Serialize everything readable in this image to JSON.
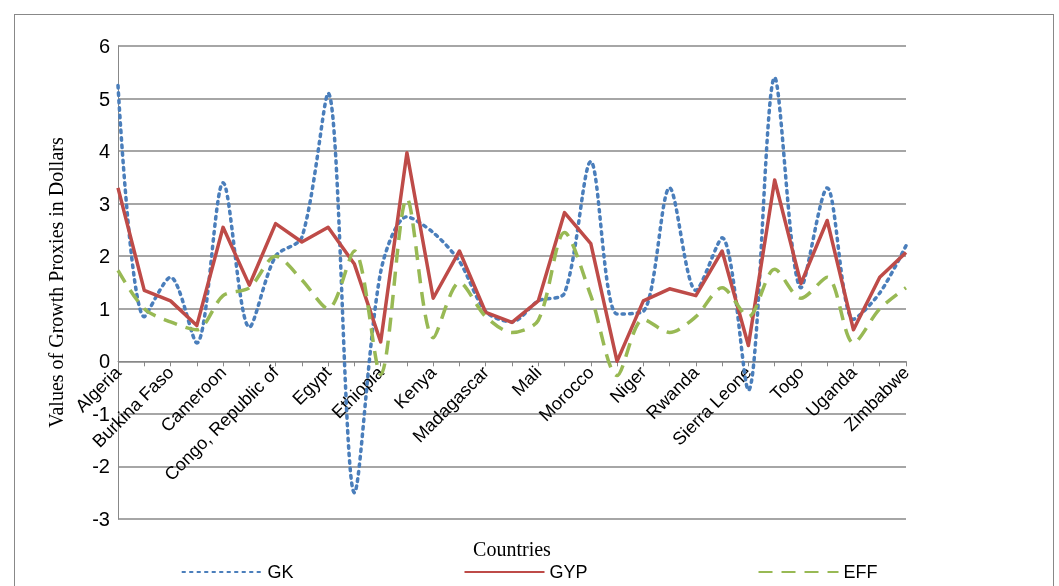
{
  "chart_data": {
    "type": "line",
    "xlabel": "Countries",
    "ylabel": "Values of Growth Proxies in Dollars",
    "categories": [
      "Algeria",
      null,
      "Burkina Faso",
      null,
      "Cameroon",
      null,
      "Congo, Republic of",
      null,
      "Egypt",
      null,
      "Ethiopia",
      null,
      "Kenya",
      null,
      "Madagascar",
      null,
      "Mali",
      null,
      "Morocco",
      null,
      "Niger",
      null,
      "Rwanda",
      null,
      "Sierra Leone",
      null,
      "Togo",
      null,
      "Uganda",
      null,
      "Zimbabwe"
    ],
    "series": [
      {
        "name": "GK",
        "color": "#4a7ebb",
        "line_style": "dotted",
        "values": [
          5.25,
          0.85,
          1.6,
          0.35,
          3.4,
          0.65,
          2.0,
          2.36,
          5.1,
          -2.5,
          1.7,
          2.75,
          2.45,
          1.9,
          0.95,
          0.75,
          1.15,
          1.3,
          3.8,
          0.9,
          0.95,
          3.3,
          1.35,
          2.35,
          -0.55,
          5.4,
          1.4,
          3.3,
          0.8,
          1.3,
          2.2
        ]
      },
      {
        "name": "GYP",
        "color": "#be4b48",
        "line_style": "solid",
        "values": [
          3.3,
          1.35,
          1.15,
          0.68,
          2.55,
          1.45,
          2.62,
          2.27,
          2.55,
          1.85,
          0.37,
          3.97,
          1.2,
          2.1,
          0.93,
          0.74,
          1.15,
          2.83,
          2.24,
          0,
          1.15,
          1.38,
          1.25,
          2.1,
          0.3,
          3.45,
          1.48,
          2.68,
          0.6,
          1.6,
          2.07
        ]
      },
      {
        "name": "EFF",
        "color": "#98b954",
        "line_style": "dashed",
        "values": [
          1.73,
          1.0,
          0.75,
          0.6,
          1.25,
          1.4,
          2.0,
          1.55,
          1.0,
          2.1,
          -0.25,
          3.1,
          0.45,
          1.5,
          0.85,
          0.55,
          0.78,
          2.45,
          1.25,
          -0.27,
          0.8,
          0.55,
          0.85,
          1.4,
          0.85,
          1.75,
          1.2,
          1.6,
          0.35,
          1.0,
          1.4
        ]
      }
    ],
    "ylim": [
      -3,
      6
    ],
    "yticks": [
      -3,
      -2,
      -1,
      0,
      1,
      2,
      3,
      4,
      5,
      6
    ],
    "grid": "y",
    "legend": "bottom",
    "marker": "none"
  }
}
